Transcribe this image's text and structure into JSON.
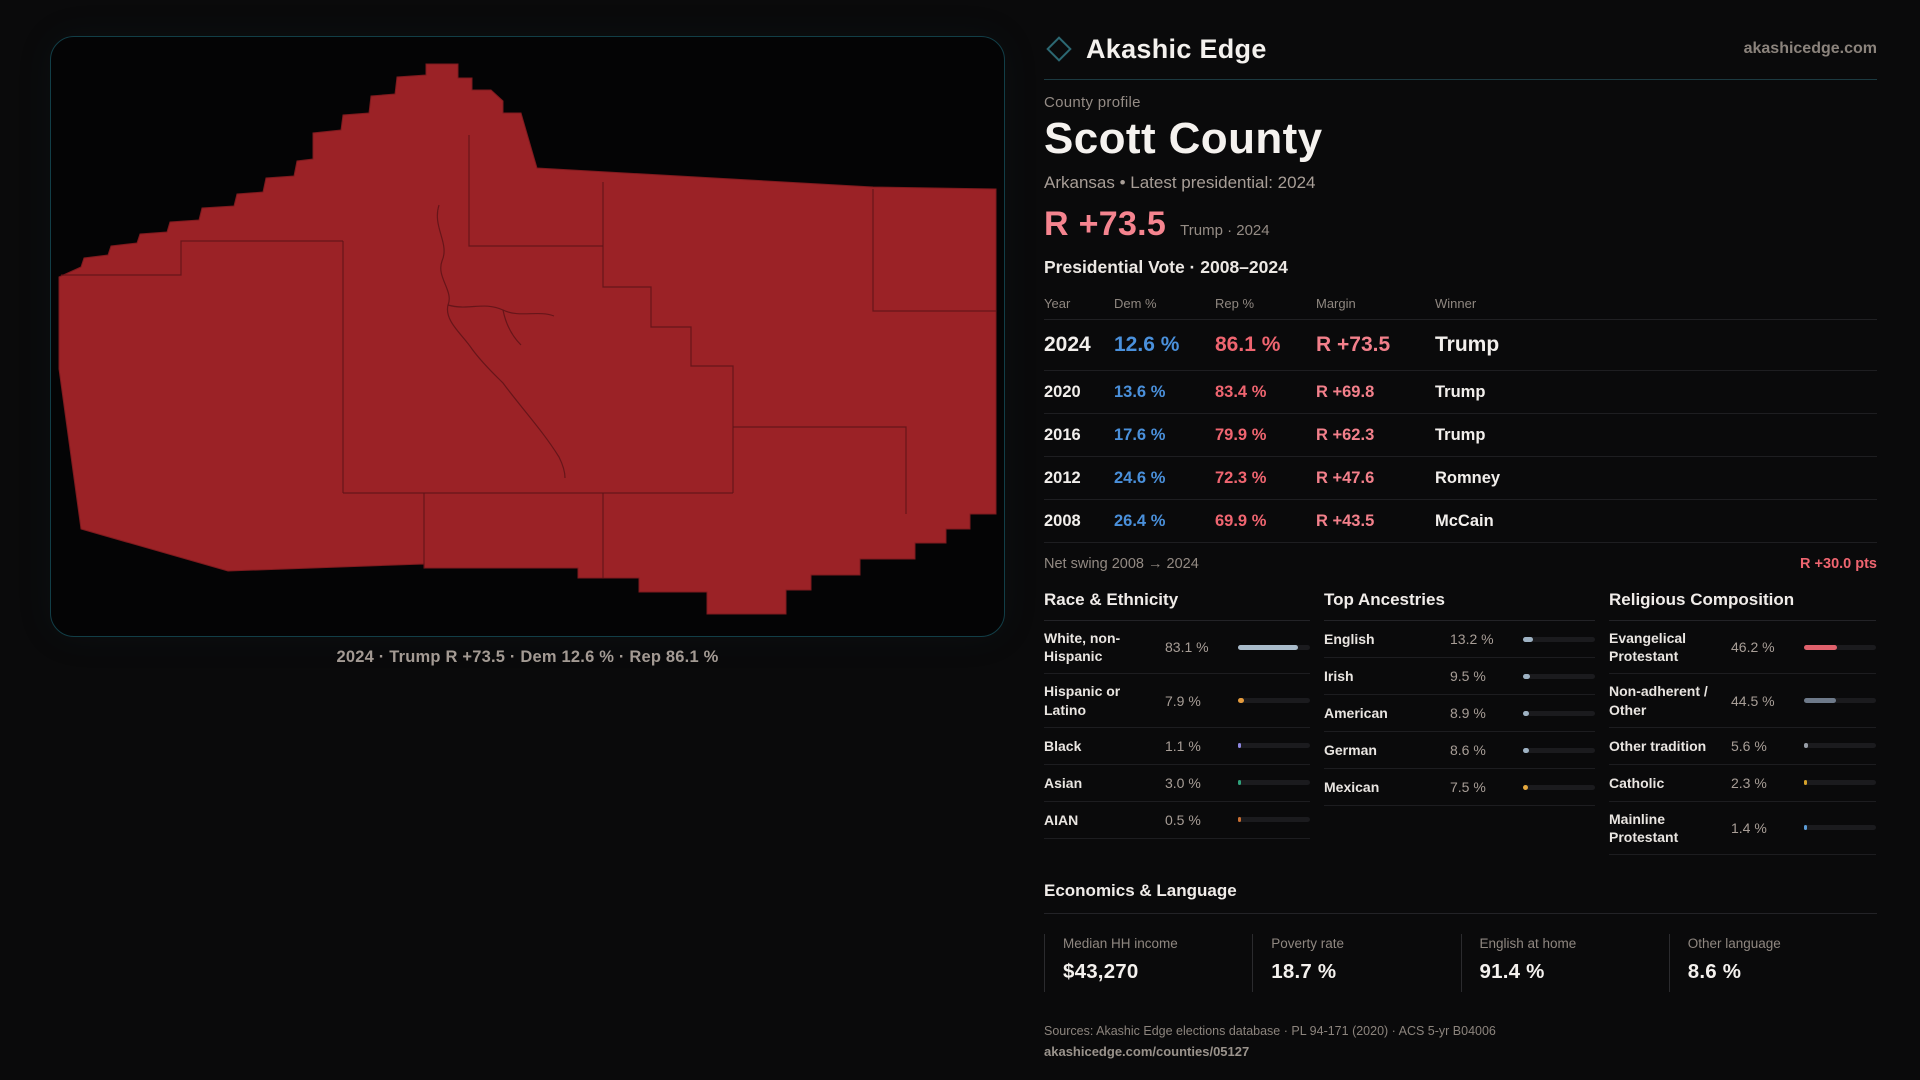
{
  "header": {
    "brand": "Akashic Edge",
    "domain": "akashicedge.com"
  },
  "profile": {
    "eyebrow": "County profile",
    "title": "Scott County",
    "subtitle": "Arkansas • Latest presidential: 2024",
    "margin_big": "R +73.5",
    "margin_note": "Trump · 2024"
  },
  "map": {
    "caption": "2024 · Trump R +73.5 · Dem 12.6 % · Rep 86.1 %"
  },
  "colors": {
    "county_red": "#9b2226",
    "panel_border_teal": "#123e47",
    "dem_blue": "#4a90db",
    "rep_red": "#ef6570",
    "margin_pink": "#f3808b"
  },
  "table": {
    "title": "Presidential Vote · 2008–2024",
    "headers": {
      "year": "Year",
      "dem": "Dem %",
      "rep": "Rep %",
      "margin": "Margin",
      "winner": "Winner"
    },
    "rows": [
      {
        "year": "2024",
        "dem": "12.6 %",
        "rep": "86.1 %",
        "margin": "R +73.5",
        "winner": "Trump"
      },
      {
        "year": "2020",
        "dem": "13.6 %",
        "rep": "83.4 %",
        "margin": "R +69.8",
        "winner": "Trump"
      },
      {
        "year": "2016",
        "dem": "17.6 %",
        "rep": "79.9 %",
        "margin": "R +62.3",
        "winner": "Trump"
      },
      {
        "year": "2012",
        "dem": "24.6 %",
        "rep": "72.3 %",
        "margin": "R +47.6",
        "winner": "Romney"
      },
      {
        "year": "2008",
        "dem": "26.4 %",
        "rep": "69.9 %",
        "margin": "R +43.5",
        "winner": "McCain"
      }
    ]
  },
  "swing": {
    "label": "Net swing 2008 → 2024",
    "value": "R +30.0 pts"
  },
  "race": {
    "title": "Race & Ethnicity",
    "rows": [
      {
        "label": "White, non-Hispanic",
        "value": "83.1 %",
        "pct": 83.1,
        "color": "#a9bbca"
      },
      {
        "label": "Hispanic or Latino",
        "value": "7.9 %",
        "pct": 7.9,
        "color": "#e59b3d"
      },
      {
        "label": "Black",
        "value": "1.1 %",
        "pct": 1.1,
        "color": "#8d86de"
      },
      {
        "label": "Asian",
        "value": "3.0 %",
        "pct": 3.0,
        "color": "#2fa17b"
      },
      {
        "label": "AIAN",
        "value": "0.5 %",
        "pct": 0.5,
        "color": "#c96f33"
      }
    ]
  },
  "ancestries": {
    "title": "Top Ancestries",
    "rows": [
      {
        "label": "English",
        "value": "13.2 %",
        "pct": 13.2,
        "color": "#9eb2c3"
      },
      {
        "label": "Irish",
        "value": "9.5 %",
        "pct": 9.5,
        "color": "#9eb2c3"
      },
      {
        "label": "American",
        "value": "8.9 %",
        "pct": 8.9,
        "color": "#9eb2c3"
      },
      {
        "label": "German",
        "value": "8.6 %",
        "pct": 8.6,
        "color": "#9eb2c3"
      },
      {
        "label": "Mexican",
        "value": "7.5 %",
        "pct": 7.5,
        "color": "#e5a83d"
      }
    ]
  },
  "religion": {
    "title": "Religious Composition",
    "rows": [
      {
        "label": "Evangelical Protestant",
        "value": "46.2 %",
        "pct": 46.2,
        "color": "#e0616c"
      },
      {
        "label": "Non-adherent / Other",
        "value": "44.5 %",
        "pct": 44.5,
        "color": "#6e7a8a"
      },
      {
        "label": "Other tradition",
        "value": "5.6 %",
        "pct": 5.6,
        "color": "#979da6"
      },
      {
        "label": "Catholic",
        "value": "2.3 %",
        "pct": 2.3,
        "color": "#d4a12a"
      },
      {
        "label": "Mainline Protestant",
        "value": "1.4 %",
        "pct": 1.4,
        "color": "#5b9bd5"
      }
    ]
  },
  "economics": {
    "title": "Economics & Language",
    "stats": [
      {
        "label": "Median HH income",
        "value": "$43,270"
      },
      {
        "label": "Poverty rate",
        "value": "18.7 %"
      },
      {
        "label": "English at home",
        "value": "91.4 %"
      },
      {
        "label": "Other language",
        "value": "8.6 %"
      }
    ]
  },
  "footer": {
    "sources": "Sources: Akashic Edge elections database · PL 94-171 (2020) · ACS 5-yr B04006",
    "permalink": "akashicedge.com/counties/05127"
  }
}
